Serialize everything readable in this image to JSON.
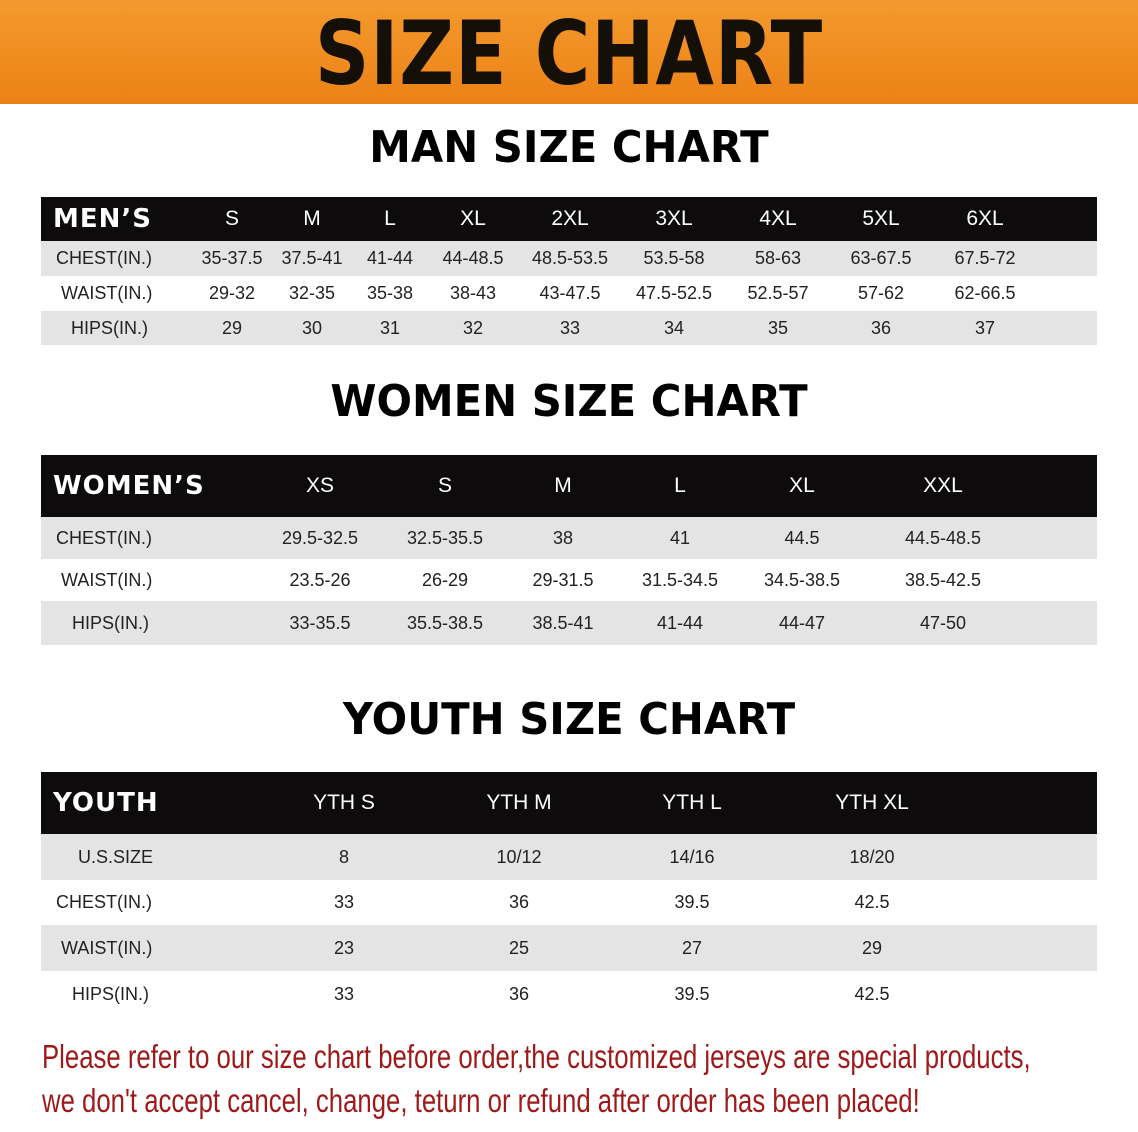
{
  "banner": {
    "title": "SIZE CHART",
    "color": "#ee8a1f"
  },
  "men": {
    "title": "MAN SIZE CHART",
    "header": "MEN’S",
    "sizes": [
      "S",
      "M",
      "L",
      "XL",
      "2XL",
      "3XL",
      "4XL",
      "5XL",
      "6XL"
    ],
    "rows": [
      {
        "label": "CHEST(IN.)",
        "values": [
          "35-37.5",
          "37.5-41",
          "41-44",
          "44-48.5",
          "48.5-53.5",
          "53.5-58",
          "58-63",
          "63-67.5",
          "67.5-72"
        ]
      },
      {
        "label": "WAIST(IN.)",
        "values": [
          "29-32",
          "32-35",
          "35-38",
          "38-43",
          "43-47.5",
          "47.5-52.5",
          "52.5-57",
          "57-62",
          "62-66.5"
        ]
      },
      {
        "label": "HIPS(IN.)",
        "values": [
          "29",
          "30",
          "31",
          "32",
          "33",
          "34",
          "35",
          "36",
          "37"
        ]
      }
    ]
  },
  "women": {
    "title": "WOMEN SIZE CHART",
    "header": "WOMEN’S",
    "sizes": [
      "XS",
      "S",
      "M",
      "L",
      "XL",
      "XXL"
    ],
    "rows": [
      {
        "label": "CHEST(IN.)",
        "values": [
          "29.5-32.5",
          "32.5-35.5",
          "38",
          "41",
          "44.5",
          "44.5-48.5"
        ]
      },
      {
        "label": "WAIST(IN.)",
        "values": [
          "23.5-26",
          "26-29",
          "29-31.5",
          "31.5-34.5",
          "34.5-38.5",
          "38.5-42.5"
        ]
      },
      {
        "label": "HIPS(IN.)",
        "values": [
          "33-35.5",
          "35.5-38.5",
          "38.5-41",
          "41-44",
          "44-47",
          "47-50"
        ]
      }
    ]
  },
  "youth": {
    "title": "YOUTH SIZE CHART",
    "header": "YOUTH",
    "sizes": [
      "YTH S",
      "YTH M",
      "YTH L",
      "YTH XL"
    ],
    "rows": [
      {
        "label": "U.S.SIZE",
        "values": [
          "8",
          "10/12",
          "14/16",
          "18/20"
        ]
      },
      {
        "label": "CHEST(IN.)",
        "values": [
          "33",
          "36",
          "39.5",
          "42.5"
        ]
      },
      {
        "label": "WAIST(IN.)",
        "values": [
          "23",
          "25",
          "27",
          "29"
        ]
      },
      {
        "label": "HIPS(IN.)",
        "values": [
          "33",
          "36",
          "39.5",
          "42.5"
        ]
      }
    ]
  },
  "notice": {
    "line1": "Please refer to our size chart before order,the customized jerseys are special products,",
    "line2": "we don't accept cancel, change, teturn or refund after order has been placed!",
    "color": "#9e1a1a"
  }
}
